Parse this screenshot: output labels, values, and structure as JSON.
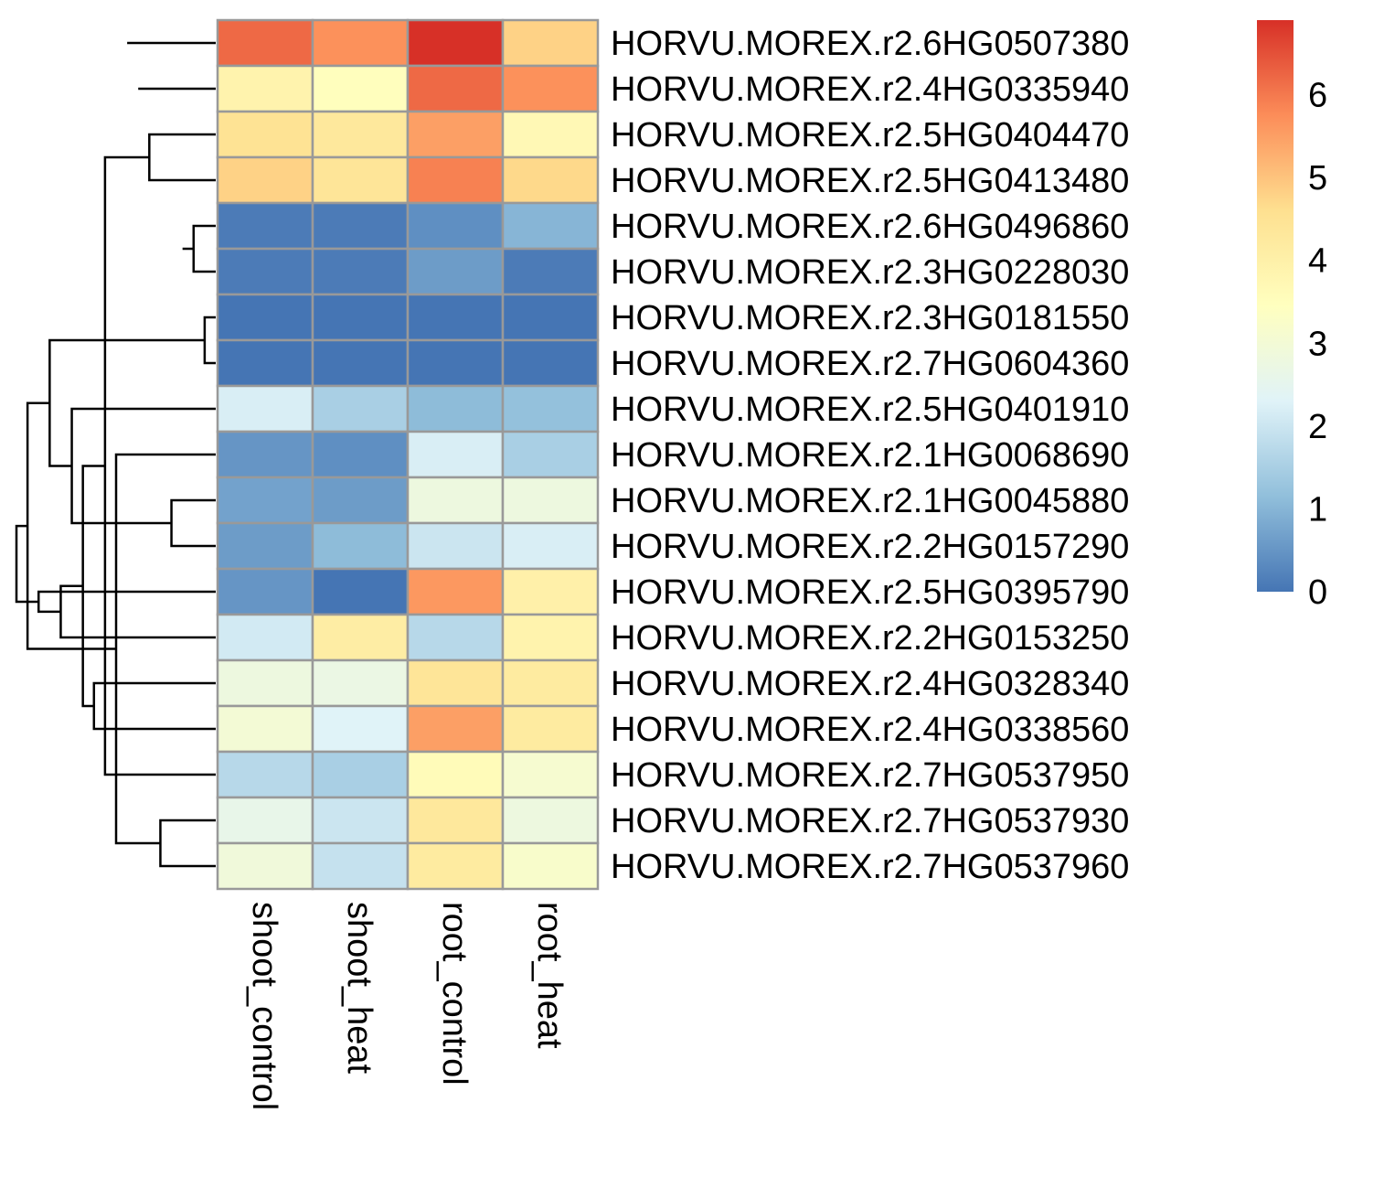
{
  "chart_data": {
    "type": "heatmap",
    "title": "",
    "xlabel": "",
    "ylabel": "",
    "columns": [
      "shoot_control",
      "shoot_heat",
      "root_control",
      "root_heat"
    ],
    "rows": [
      "HORVU.MOREX.r2.6HG0507380",
      "HORVU.MOREX.r2.4HG0335940",
      "HORVU.MOREX.r2.5HG0404470",
      "HORVU.MOREX.r2.5HG0413480",
      "HORVU.MOREX.r2.6HG0496860",
      "HORVU.MOREX.r2.3HG0228030",
      "HORVU.MOREX.r2.3HG0181550",
      "HORVU.MOREX.r2.7HG0604360",
      "HORVU.MOREX.r2.5HG0401910",
      "HORVU.MOREX.r2.1HG0068690",
      "HORVU.MOREX.r2.1HG0045880",
      "HORVU.MOREX.r2.2HG0157290",
      "HORVU.MOREX.r2.5HG0395790",
      "HORVU.MOREX.r2.2HG0153250",
      "HORVU.MOREX.r2.4HG0328340",
      "HORVU.MOREX.r2.4HG0338560",
      "HORVU.MOREX.r2.7HG0537950",
      "HORVU.MOREX.r2.7HG0537930",
      "HORVU.MOREX.r2.7HG0537960"
    ],
    "values": [
      [
        6.2,
        5.7,
        6.9,
        4.8
      ],
      [
        3.9,
        3.5,
        6.2,
        5.7
      ],
      [
        4.5,
        4.3,
        5.5,
        3.7
      ],
      [
        4.8,
        4.4,
        5.9,
        4.7
      ],
      [
        0.1,
        0.1,
        0.4,
        1.0
      ],
      [
        0.1,
        0.1,
        0.6,
        0.1
      ],
      [
        0.0,
        0.0,
        0.0,
        0.0
      ],
      [
        0.0,
        0.0,
        0.0,
        0.0
      ],
      [
        2.2,
        1.5,
        1.1,
        1.2
      ],
      [
        0.5,
        0.4,
        2.2,
        1.5
      ],
      [
        0.7,
        0.6,
        2.8,
        2.8
      ],
      [
        0.6,
        1.1,
        2.0,
        2.2
      ],
      [
        0.5,
        0.0,
        5.6,
        4.0
      ],
      [
        2.1,
        4.1,
        1.7,
        3.9
      ],
      [
        2.8,
        2.7,
        4.4,
        4.2
      ],
      [
        3.0,
        2.3,
        5.5,
        4.2
      ],
      [
        1.7,
        1.5,
        3.6,
        3.1
      ],
      [
        2.6,
        2.0,
        4.3,
        2.8
      ],
      [
        2.9,
        1.9,
        4.2,
        3.2
      ]
    ],
    "color_scale": {
      "min": 0,
      "max": 6.9,
      "ticks": [
        "0",
        "1",
        "2",
        "3",
        "4",
        "5",
        "6"
      ],
      "stops": [
        "#4575B4",
        "#91BFDB",
        "#E0F3F8",
        "#FFFFBF",
        "#FEE090",
        "#FC8D59",
        "#D73027"
      ]
    },
    "row_dendrogram": [
      [
        6,
        7
      ],
      [
        4,
        5
      ],
      [
        20,
        21
      ],
      [
        10,
        11
      ],
      [
        17,
        18
      ],
      [
        2,
        3
      ],
      [
        1,
        25
      ],
      [
        0,
        26
      ],
      [
        9,
        23
      ],
      [
        16,
        24
      ],
      [
        14,
        15
      ],
      [
        29,
        28
      ],
      [
        8,
        22
      ],
      [
        13,
        30
      ],
      [
        31,
        19
      ],
      [
        12,
        32
      ],
      [
        33,
        27
      ],
      [
        34,
        35
      ]
    ],
    "cell_border_color": "#999999",
    "legend_position": "right"
  }
}
